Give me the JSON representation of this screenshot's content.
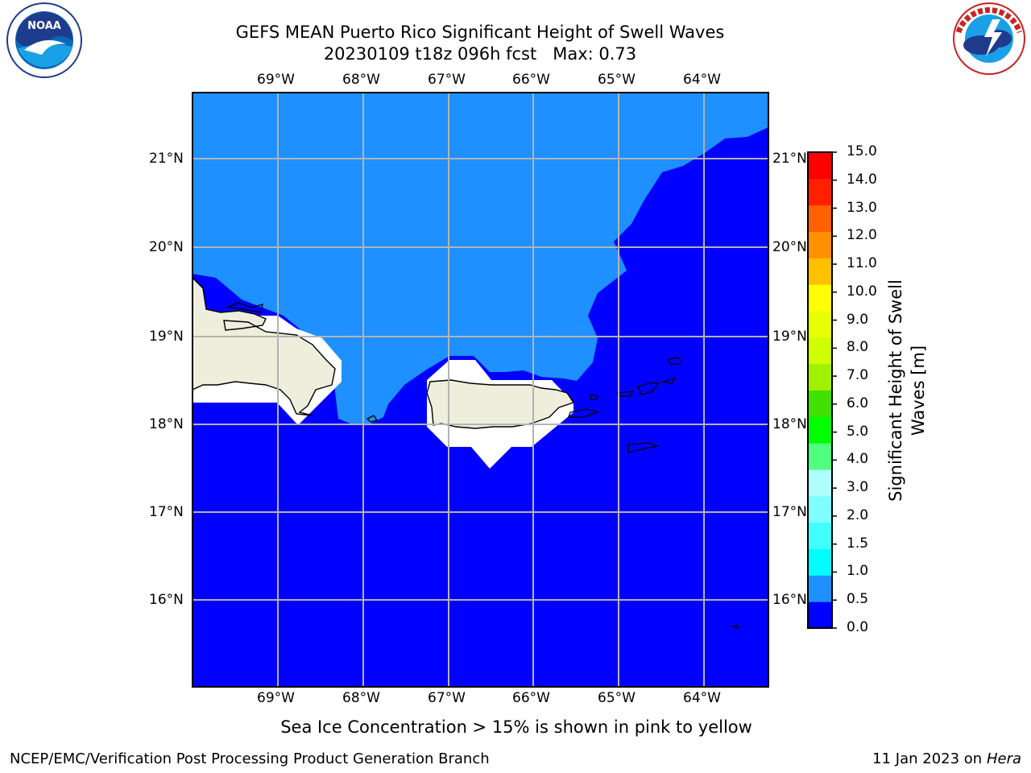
{
  "title_line1": "GEFS MEAN Puerto Rico Significant Height of Swell Waves",
  "title_line2": "20230109 t18z 096h fcst   Max: 0.73",
  "footer_left": "NCEP/EMC/Verification Post Processing Product Generation Branch",
  "footer_date": "11 Jan 2023 on ",
  "footer_machine": "Hera",
  "note": "Sea Ice Concentration > 15% is shown in pink to yellow",
  "logos": {
    "left": "noaa-logo",
    "right": "nws-logo"
  },
  "map": {
    "lon_labels": [
      "69°W",
      "68°W",
      "67°W",
      "66°W",
      "65°W",
      "64°W"
    ],
    "lat_labels": [
      "21°N",
      "20°N",
      "19°N",
      "18°N",
      "17°N",
      "16°N"
    ],
    "colors": {
      "ocean_low": "#0000ff",
      "ocean_mid": "#1e90ff",
      "land": "#eeeedc",
      "grid": "#b4b4b4"
    }
  },
  "colorbar": {
    "title": "Significant Height of Swell Waves [m]",
    "ticks": [
      "0.0",
      "0.5",
      "1.0",
      "1.5",
      "2.0",
      "3.0",
      "4.0",
      "5.0",
      "6.0",
      "7.0",
      "8.0",
      "9.0",
      "10.0",
      "11.0",
      "12.0",
      "13.0",
      "14.0",
      "15.0"
    ],
    "colors": [
      "#0000ff",
      "#1e90ff",
      "#00ffff",
      "#40ffff",
      "#80ffff",
      "#b0ffff",
      "#50ff80",
      "#00ff00",
      "#40e000",
      "#a0f000",
      "#d0ff00",
      "#e8ff00",
      "#ffff00",
      "#ffc000",
      "#ff9000",
      "#ff6000",
      "#ff2000",
      "#ff0000"
    ]
  }
}
